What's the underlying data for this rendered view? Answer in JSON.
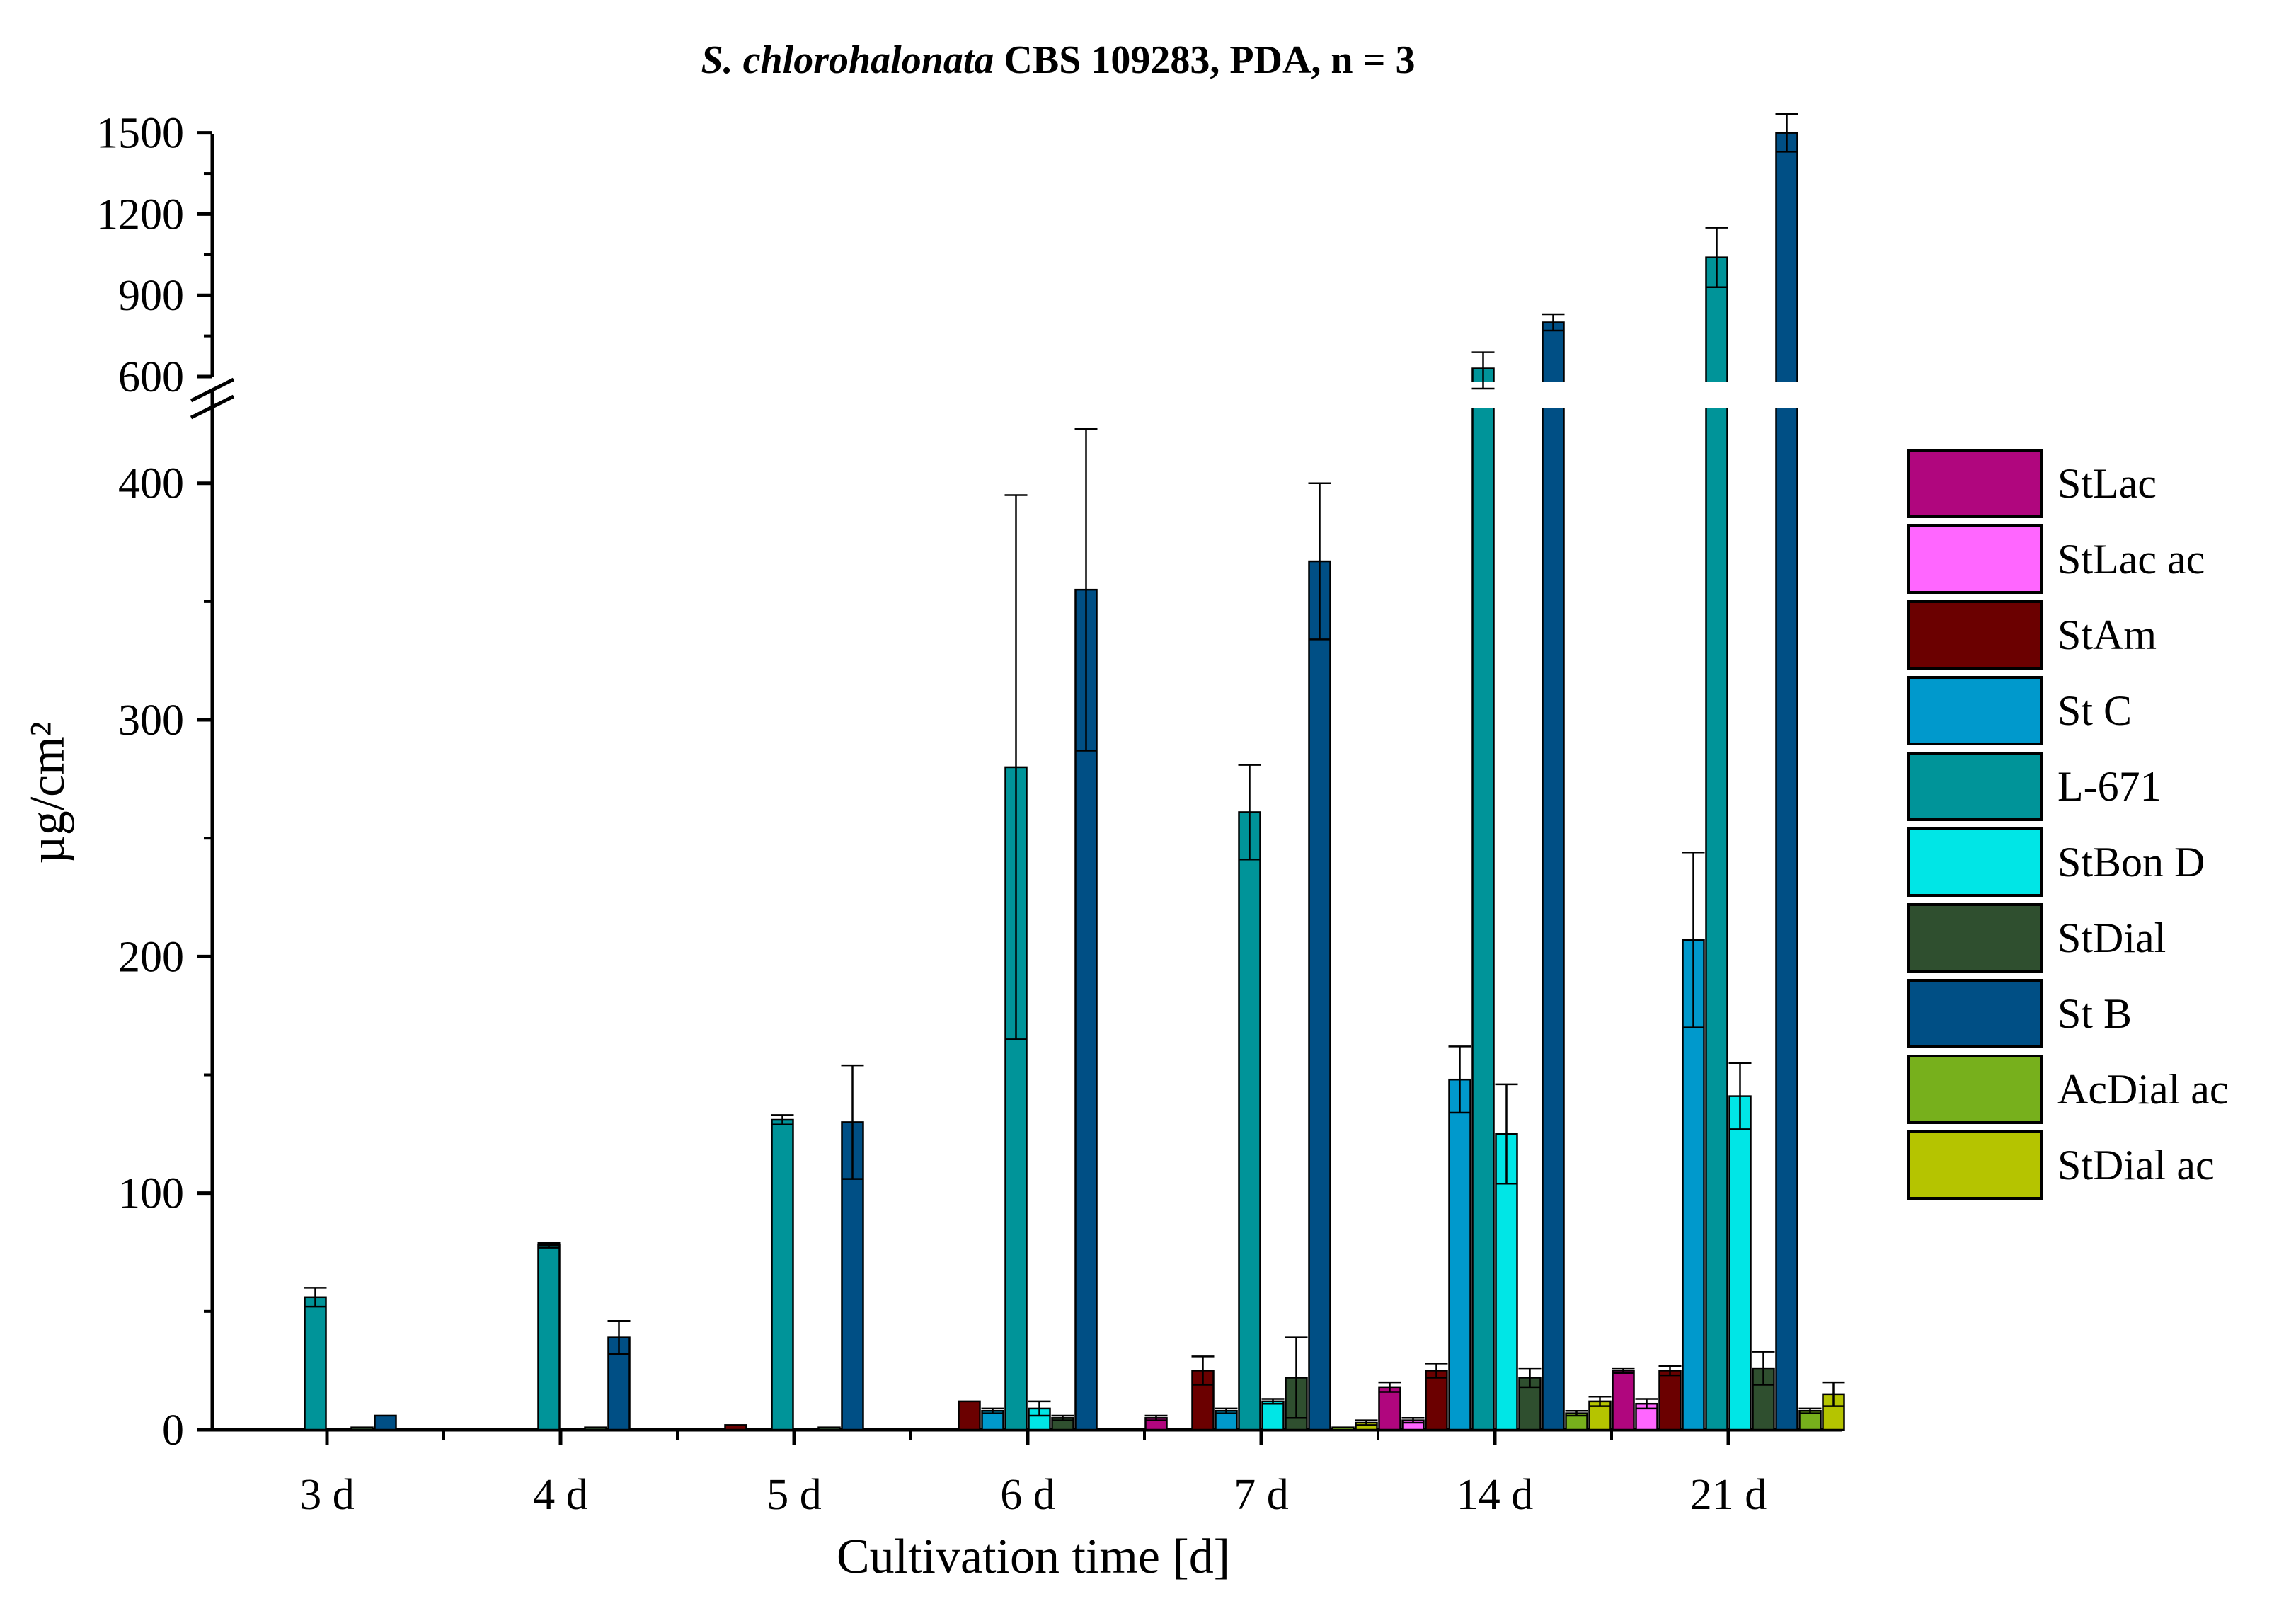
{
  "chart_data": {
    "type": "bar",
    "title": {
      "italic": "S. chlorohalonata",
      "bold": " CBS 109283, PDA, n = 3"
    },
    "xlabel": "Cultivation time [d]",
    "ylabel": "µg/cm²",
    "categories": [
      "3 d",
      "4 d",
      "5 d",
      "6 d",
      "7 d",
      "14 d",
      "21 d"
    ],
    "y_lower_range": [
      0,
      440
    ],
    "y_lower_ticks": [
      0,
      100,
      200,
      300,
      400
    ],
    "y_upper_range": [
      600,
      1520
    ],
    "y_upper_ticks": [
      600,
      900,
      1200,
      1500
    ],
    "axis_break": [
      440,
      600
    ],
    "series": [
      {
        "name": "StLac",
        "smallcaps": "StLac",
        "color": "#b0067e",
        "values": [
          0,
          0,
          0,
          0,
          5,
          18,
          25
        ],
        "errors": [
          0,
          0,
          0,
          0,
          1,
          2,
          1
        ]
      },
      {
        "name": "StLac ac",
        "smallcaps": "StLac ac",
        "color": "#ff66ff",
        "values": [
          0,
          0,
          0,
          0,
          0,
          4,
          11
        ],
        "errors": [
          0,
          0,
          0,
          0,
          0,
          1,
          2
        ]
      },
      {
        "name": "StAm",
        "smallcaps": "StAm",
        "color": "#6b0000",
        "values": [
          0,
          0,
          2,
          12,
          25,
          25,
          25
        ],
        "errors": [
          0,
          0,
          0,
          0,
          6,
          3,
          2
        ]
      },
      {
        "name": "St C",
        "smallcaps": "St C",
        "color": "#0099cc",
        "values": [
          0,
          0,
          0,
          8,
          8,
          148,
          207
        ],
        "errors": [
          0,
          0,
          0,
          1,
          1,
          14,
          37
        ]
      },
      {
        "name": "L-671",
        "smallcaps": "L-671",
        "color": "#009499",
        "values": [
          56,
          78,
          131,
          280,
          261,
          630,
          1040
        ],
        "errors": [
          4,
          1,
          2,
          115,
          20,
          60,
          110
        ]
      },
      {
        "name": "StBon D",
        "smallcaps": "StBon D",
        "color": "#00e6e6",
        "values": [
          0,
          0,
          0,
          9,
          12,
          125,
          141
        ],
        "errors": [
          0,
          0,
          0,
          3,
          1,
          21,
          14
        ]
      },
      {
        "name": "StDial",
        "smallcaps": "StDial",
        "color": "#2f4f2f",
        "values": [
          1,
          1,
          1,
          5,
          22,
          22,
          26
        ],
        "errors": [
          0,
          0,
          0,
          1,
          17,
          4,
          7
        ]
      },
      {
        "name": "St B",
        "smallcaps": "St B",
        "color": "#004f85",
        "values": [
          6,
          39,
          130,
          355,
          367,
          800,
          1500
        ],
        "errors": [
          0,
          7,
          24,
          68,
          33,
          30,
          70
        ]
      },
      {
        "name": "AcDial ac",
        "smallcaps": "AcDial ac",
        "color": "#77b01c",
        "values": [
          0,
          0,
          0,
          0,
          1,
          7,
          8
        ],
        "errors": [
          0,
          0,
          0,
          0,
          0,
          1,
          1
        ]
      },
      {
        "name": "StDial ac",
        "smallcaps": "StDial ac",
        "color": "#b5c400",
        "values": [
          0,
          0,
          0,
          0,
          3,
          12,
          15
        ],
        "errors": [
          0,
          0,
          0,
          0,
          1,
          2,
          5
        ]
      }
    ]
  }
}
